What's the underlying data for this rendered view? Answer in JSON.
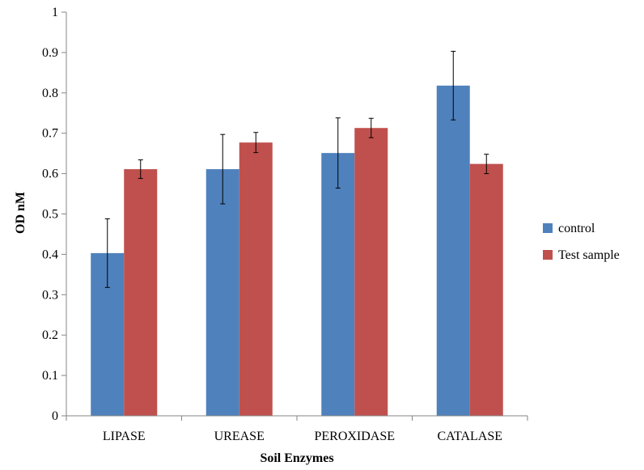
{
  "chart_data": {
    "type": "bar",
    "title": "",
    "xlabel": "Soil Enzymes",
    "ylabel": "OD nM",
    "ylim": [
      0,
      1
    ],
    "yticks": [
      "0",
      "0.1",
      "0.2",
      "0.3",
      "0.4",
      "0.5",
      "0.6",
      "0.7",
      "0.8",
      "0.9",
      "1"
    ],
    "categories": [
      "LIPASE",
      "UREASE",
      "PEROXIDASE",
      "CATALASE"
    ],
    "series": [
      {
        "name": "control",
        "color": "#4F81BD",
        "values": [
          0.403,
          0.611,
          0.651,
          0.818
        ],
        "errors": [
          0.085,
          0.086,
          0.087,
          0.085
        ]
      },
      {
        "name": "Test sample",
        "color": "#C0504D",
        "values": [
          0.611,
          0.677,
          0.713,
          0.624
        ],
        "errors": [
          0.023,
          0.025,
          0.024,
          0.024
        ]
      }
    ],
    "legend_position": "right",
    "grid": false
  }
}
